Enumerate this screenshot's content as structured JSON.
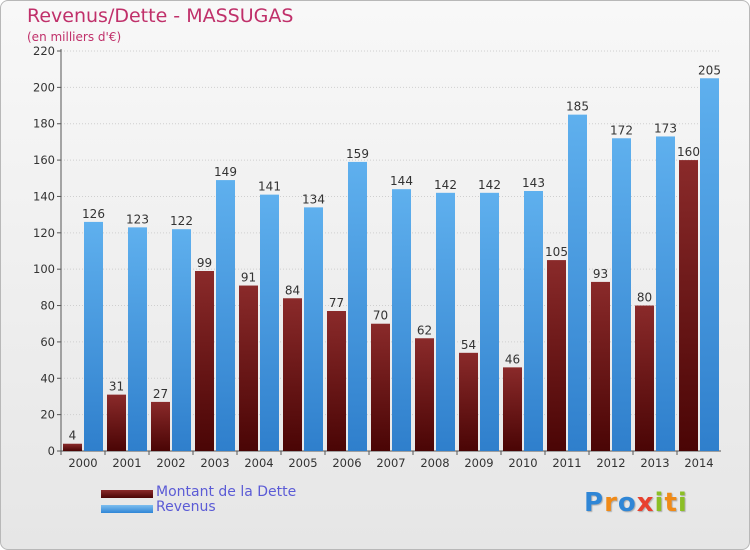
{
  "chart_data": {
    "type": "bar",
    "title": "Revenus/Dette - MASSUGAS",
    "subtitle": "(en milliers d'€)",
    "categories": [
      "2000",
      "2001",
      "2002",
      "2003",
      "2004",
      "2005",
      "2006",
      "2007",
      "2008",
      "2009",
      "2010",
      "2011",
      "2012",
      "2013",
      "2014"
    ],
    "series": [
      {
        "name": "Montant de la Dette",
        "color": "#7a1a1a",
        "values": [
          4,
          31,
          27,
          99,
          91,
          84,
          77,
          70,
          62,
          54,
          46,
          105,
          93,
          80,
          160
        ]
      },
      {
        "name": "Revenus",
        "color": "#4d9fe0",
        "values": [
          126,
          123,
          122,
          149,
          141,
          134,
          159,
          144,
          142,
          142,
          143,
          185,
          172,
          173,
          205
        ]
      }
    ],
    "ylim": [
      0,
      220
    ],
    "yticks": [
      0,
      20,
      40,
      60,
      80,
      100,
      120,
      140,
      160,
      180,
      200,
      220
    ],
    "grid": true,
    "legend_position": "bottom-left"
  },
  "logo": {
    "letters": [
      "P",
      "r",
      "o",
      "x",
      "i",
      "t",
      "i"
    ],
    "colors": [
      "#2f86d6",
      "#f08a17",
      "#2f86d6",
      "#e8412e",
      "#8cbf26",
      "#f08a17",
      "#8cbf26"
    ]
  }
}
